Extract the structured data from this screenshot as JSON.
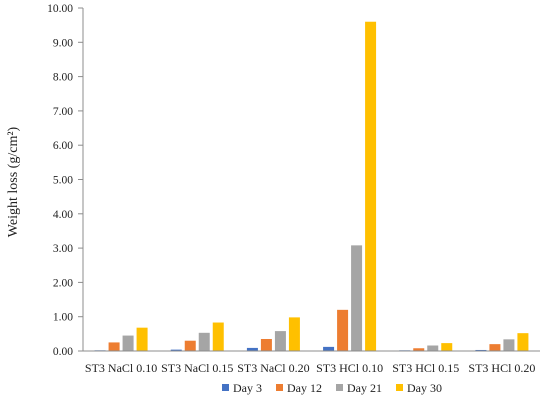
{
  "chart_data": {
    "type": "bar",
    "ylabel": "Weight loss (g/cm²)",
    "xlabel": "",
    "ylim": [
      0,
      10
    ],
    "yticks": [
      "0.00",
      "1.00",
      "2.00",
      "3.00",
      "4.00",
      "5.00",
      "6.00",
      "7.00",
      "8.00",
      "9.00",
      "10.00"
    ],
    "grid": false,
    "legend_position": "bottom",
    "categories": [
      "ST3 NaCl 0.10",
      "ST3 NaCl 0.15",
      "ST3 NaCl 0.20",
      "ST3 HCl 0.10",
      "ST3 HCl 0.15",
      "ST3 HCl 0.20"
    ],
    "series": [
      {
        "name": "Day 3",
        "color": "#4472C4",
        "values": [
          0.02,
          0.04,
          0.09,
          0.12,
          0.02,
          0.03
        ]
      },
      {
        "name": "Day 12",
        "color": "#ED7D31",
        "values": [
          0.25,
          0.3,
          0.35,
          1.2,
          0.08,
          0.2
        ]
      },
      {
        "name": "Day 21",
        "color": "#A5A5A5",
        "values": [
          0.45,
          0.53,
          0.58,
          3.08,
          0.16,
          0.34
        ]
      },
      {
        "name": "Day 30",
        "color": "#FFC000",
        "values": [
          0.68,
          0.83,
          0.98,
          9.6,
          0.23,
          0.52
        ]
      }
    ]
  }
}
